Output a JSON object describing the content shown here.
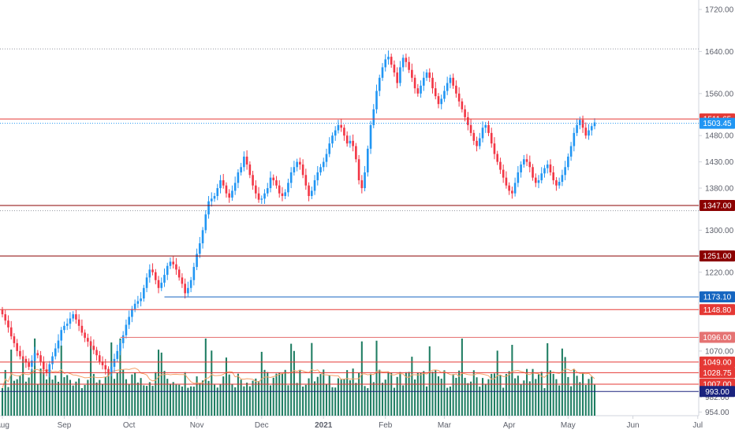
{
  "chart_data": {
    "type": "candlestick",
    "colors": {
      "up": "#2196f3",
      "down": "#f23645",
      "volume": "#1e7d62",
      "volume_ma": "#f6a168",
      "level_red": "#e53935",
      "level_dark": "#8b0000",
      "level_blue": "#1565c0",
      "axis_text": "#5d606b",
      "dotted": "#9598a1"
    },
    "y_axis": {
      "ylim": [
        947,
        1738
      ],
      "ticks": [
        {
          "value": 1720,
          "label": "1720.00"
        },
        {
          "value": 1640,
          "label": "1640.00"
        },
        {
          "value": 1560,
          "label": "1560.00"
        },
        {
          "value": 1480,
          "label": "1480.00"
        },
        {
          "value": 1430,
          "label": "1430.00"
        },
        {
          "value": 1380,
          "label": "1380.00"
        },
        {
          "value": 1300,
          "label": "1300.00"
        },
        {
          "value": 1220,
          "label": "1220.00"
        },
        {
          "value": 1070,
          "label": "1070.00"
        },
        {
          "value": 982,
          "label": "982.00"
        },
        {
          "value": 954,
          "label": "954.00"
        }
      ]
    },
    "x_axis": {
      "ticks": [
        {
          "label": "Aug",
          "index": 0
        },
        {
          "label": "Sep",
          "index": 21
        },
        {
          "label": "Oct",
          "index": 43
        },
        {
          "label": "Nov",
          "index": 66
        },
        {
          "label": "Dec",
          "index": 88
        },
        {
          "label": "2021",
          "index": 109
        },
        {
          "label": "Feb",
          "index": 130
        },
        {
          "label": "Mar",
          "index": 150
        },
        {
          "label": "Apr",
          "index": 172
        },
        {
          "label": "May",
          "index": 192
        },
        {
          "label": "Jun",
          "index": 214
        },
        {
          "label": "Jul",
          "index": 236
        }
      ],
      "slots": 250
    },
    "levels": [
      {
        "value": 1511.65,
        "label": "1511.65",
        "style": "solid",
        "color": "#e53935",
        "tag": "#e53935",
        "start": 0
      },
      {
        "value": 1503.45,
        "label": "1503.45",
        "style": "dotted",
        "color": "#2196f3",
        "tag": "#2196f3",
        "start": 0
      },
      {
        "value": 1347.0,
        "label": "1347.00",
        "style": "solid",
        "color": "#8b0000",
        "tag": "#8b0000",
        "start": 0
      },
      {
        "value": 1251.0,
        "label": "1251.00",
        "style": "solid",
        "color": "#8b0000",
        "tag": "#8b0000",
        "start": 0
      },
      {
        "value": 1173.1,
        "label": "1173.10",
        "style": "solid",
        "color": "#1565c0",
        "tag": "#1565c0",
        "start": 55
      },
      {
        "value": 1148.8,
        "label": "1148.80",
        "style": "solid",
        "color": "#e53935",
        "tag": "#e53935",
        "start": 0
      },
      {
        "value": 1096.0,
        "label": "1096.00",
        "style": "solid",
        "color": "#e57373",
        "tag": "#e57373",
        "start": 40
      },
      {
        "value": 1049.0,
        "label": "1049.00",
        "style": "solid",
        "color": "#e53935",
        "tag": "#e53935",
        "start": 0
      },
      {
        "value": 1028.75,
        "label": "1028.75",
        "style": "solid",
        "color": "#e53935",
        "tag": "#e53935",
        "start": 0
      },
      {
        "value": 1007.0,
        "label": "1007.00",
        "style": "solid",
        "color": "#e53935",
        "tag": "#e53935",
        "start": 0
      },
      {
        "value": 993.0,
        "label": "993.00",
        "style": "solid",
        "color": "#1a237e",
        "tag": "#1a237e",
        "start": 0
      }
    ],
    "dotted_lines": [
      1645,
      1337
    ],
    "close": [
      1140,
      1128,
      1115,
      1098,
      1085,
      1070,
      1060,
      1055,
      1048,
      1040,
      1052,
      1066,
      1062,
      1050,
      1035,
      1028,
      1045,
      1060,
      1075,
      1090,
      1110,
      1118,
      1122,
      1132,
      1140,
      1130,
      1118,
      1105,
      1095,
      1088,
      1080,
      1072,
      1062,
      1050,
      1043,
      1035,
      1030,
      1040,
      1055,
      1070,
      1085,
      1100,
      1120,
      1135,
      1150,
      1160,
      1165,
      1170,
      1190,
      1210,
      1225,
      1220,
      1205,
      1190,
      1200,
      1215,
      1232,
      1240,
      1235,
      1225,
      1210,
      1198,
      1180,
      1190,
      1205,
      1230,
      1255,
      1275,
      1300,
      1330,
      1355,
      1360,
      1365,
      1380,
      1395,
      1385,
      1370,
      1362,
      1375,
      1390,
      1410,
      1420,
      1440,
      1425,
      1405,
      1385,
      1370,
      1358,
      1360,
      1370,
      1380,
      1400,
      1395,
      1385,
      1370,
      1365,
      1372,
      1390,
      1410,
      1420,
      1430,
      1425,
      1405,
      1385,
      1365,
      1375,
      1395,
      1410,
      1420,
      1430,
      1445,
      1465,
      1480,
      1490,
      1500,
      1495,
      1480,
      1465,
      1470,
      1460,
      1435,
      1395,
      1380,
      1410,
      1455,
      1500,
      1530,
      1565,
      1590,
      1610,
      1625,
      1630,
      1615,
      1600,
      1580,
      1610,
      1628,
      1620,
      1605,
      1590,
      1570,
      1560,
      1575,
      1590,
      1600,
      1590,
      1570,
      1555,
      1540,
      1550,
      1565,
      1580,
      1590,
      1575,
      1560,
      1545,
      1530,
      1515,
      1500,
      1485,
      1470,
      1460,
      1475,
      1495,
      1500,
      1485,
      1465,
      1445,
      1430,
      1415,
      1400,
      1385,
      1375,
      1370,
      1390,
      1410,
      1425,
      1435,
      1430,
      1420,
      1400,
      1390,
      1395,
      1408,
      1418,
      1425,
      1410,
      1395,
      1385,
      1392,
      1405,
      1420,
      1440,
      1460,
      1485,
      1500,
      1510,
      1495,
      1480,
      1490,
      1498,
      1505
    ],
    "volume_axis_max": 1070,
    "volume_axis_min": 954
  }
}
